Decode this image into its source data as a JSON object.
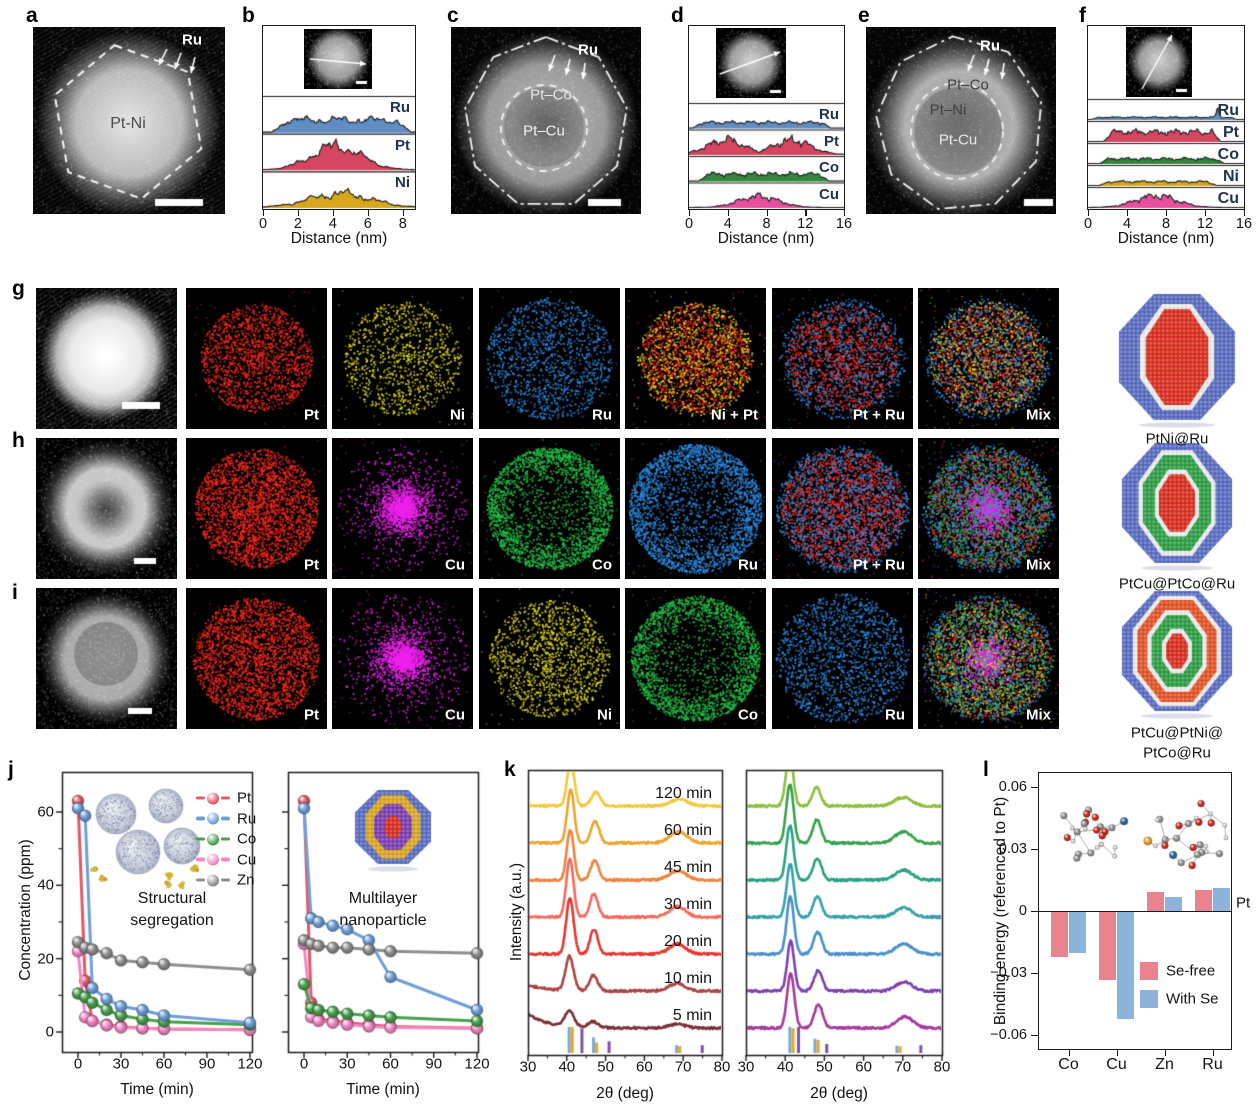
{
  "panels": {
    "a": {
      "letter": "a",
      "core_label": "Pt-Ni",
      "surface_label": "Ru"
    },
    "b": {
      "letter": "b",
      "xlabel": "Distance (nm)",
      "xtick_labels": [
        "0",
        "2",
        "4",
        "6",
        "8"
      ],
      "elements": [
        "Ru",
        "Pt",
        "Ni"
      ]
    },
    "c": {
      "letter": "c",
      "shell_label": "Pt–Co",
      "core_label": "Pt–Cu",
      "surface_label": "Ru"
    },
    "d": {
      "letter": "d",
      "xlabel": "Distance (nm)",
      "xtick_labels": [
        "0",
        "4",
        "8",
        "12",
        "16"
      ],
      "elements": [
        "Ru",
        "Pt",
        "Co",
        "Cu"
      ]
    },
    "e": {
      "letter": "e",
      "shell_label": "Pt–Co",
      "mid_label": "Pt–Ni",
      "core_label": "Pt-Cu",
      "surface_label": "Ru"
    },
    "f": {
      "letter": "f",
      "xlabel": "Distance (nm)",
      "xtick_labels": [
        "0",
        "4",
        "8",
        "12",
        "16"
      ],
      "elements": [
        "Ru",
        "Pt",
        "Co",
        "Ni",
        "Cu"
      ]
    },
    "g": {
      "letter": "g",
      "map_labels": [
        "Pt",
        "Ni",
        "Ru",
        "Ni + Pt",
        "Pt + Ru",
        "Mix"
      ],
      "model_label_lines": [
        "PtNi@Ru"
      ]
    },
    "h": {
      "letter": "h",
      "map_labels": [
        "Pt",
        "Cu",
        "Co",
        "Ru",
        "Pt + Ru",
        "Mix"
      ],
      "model_label_lines": [
        "PtCu@PtCo@Ru"
      ]
    },
    "i": {
      "letter": "i",
      "map_labels": [
        "Pt",
        "Cu",
        "Ni",
        "Co",
        "Ru",
        "Mix"
      ],
      "model_label_lines": [
        "PtCu@PtNi@",
        "PtCo@Ru"
      ]
    },
    "j": {
      "letter": "j",
      "ylabel": "Concentration (ppm)",
      "xlabel": "Time (min)",
      "ytick_labels": [
        "0",
        "20",
        "40",
        "60"
      ],
      "xtick_labels": [
        "0",
        "30",
        "60",
        "90",
        "120"
      ],
      "legend": [
        "Pt",
        "Ru",
        "Co",
        "Cu",
        "Zn"
      ],
      "left_title_lines": [
        "Structural",
        "segregation"
      ],
      "right_title_lines": [
        "Multilayer",
        "nanoparticle"
      ]
    },
    "k": {
      "letter": "k",
      "ylabel": "Intensity (a.u.)",
      "xlabel": "2θ (deg)",
      "xtick_labels": [
        "30",
        "40",
        "50",
        "60",
        "70",
        "80"
      ],
      "trace_labels": [
        "5 min",
        "10 min",
        "20 min",
        "30 min",
        "45 min",
        "60 min",
        "120 min"
      ]
    },
    "l": {
      "letter": "l",
      "ylabel": "Binding energy (referenced to Pt)",
      "ytick_labels": [
        "0.06",
        "0.03",
        "0",
        "−0.03",
        "−0.06"
      ],
      "categories": [
        "Co",
        "Cu",
        "Zn",
        "Ru"
      ],
      "baseline_label": "Pt",
      "legend": [
        {
          "name": "Se-free"
        },
        {
          "name": "With Se"
        }
      ]
    }
  },
  "colors": {
    "profile_label": "#223349",
    "profile": {
      "Ru": "#5f8dc4",
      "Pt": "#d64561",
      "Ni": "#d9a71c",
      "Co": "#35853c",
      "Cu": "#e84f9e"
    },
    "eds": {
      "Pt": "#ff2a1e",
      "Ni": "#e8e21e",
      "Ru": "#2f8fe8",
      "Cu": "#ee22ee",
      "Co": "#26c24b"
    },
    "series": {
      "Pt": "#e15868",
      "Ru": "#6f9fd8",
      "Co": "#47a04b",
      "Cu": "#f287c2",
      "Zn": "#8e8e8e"
    },
    "model": {
      "shell_blue": "#5a6cc0",
      "white": "#ececec",
      "red": "#d93020",
      "green": "#2e9e45",
      "orange": "#e25427",
      "gold": "#d9a723",
      "purple": "#7a3fb0"
    },
    "xrd_left": [
      "#7b2e33",
      "#a84445",
      "#e2372f",
      "#f4695b",
      "#f0823c",
      "#eda32b",
      "#f3c83c"
    ],
    "xrd_right": [
      "#a43a9c",
      "#7d41ae",
      "#4a8fc8",
      "#35a0ac",
      "#2aa182",
      "#35a14c",
      "#8fbe3f"
    ],
    "ref_bar": {
      "blue": "#7ba7d4",
      "gold": "#e3a81f",
      "purple": "#7b52a8"
    },
    "bar": {
      "se_free": "#e8838f",
      "with_se": "#8db3da"
    }
  },
  "chart_data": [
    {
      "id": "b_profiles",
      "type": "area",
      "xlabel": "Distance (nm)",
      "xlim": [
        0,
        8.7
      ],
      "xticks": [
        0,
        2,
        4,
        6,
        8
      ],
      "series": [
        {
          "name": "Ru",
          "shape": {
            "kind": "plateau",
            "start": 0.5,
            "end": 8.45,
            "amp": 0.45
          }
        },
        {
          "name": "Pt",
          "shape": {
            "kind": "dome",
            "center": 4.2,
            "width": 2.0,
            "amp": 0.88
          }
        },
        {
          "name": "Ni",
          "shape": {
            "kind": "dome",
            "center": 4.4,
            "width": 2.5,
            "amp": 0.52
          }
        }
      ]
    },
    {
      "id": "d_profiles",
      "type": "area",
      "xlabel": "Distance (nm)",
      "xlim": [
        0,
        16
      ],
      "xticks": [
        0,
        4,
        8,
        12,
        16
      ],
      "series": [
        {
          "name": "Ru",
          "shape": {
            "kind": "plateau",
            "start": 0.4,
            "end": 14.6,
            "amp": 0.3
          }
        },
        {
          "name": "Pt",
          "shape": {
            "kind": "domes",
            "centers": [
              3.8,
              10.6
            ],
            "width": 2.7,
            "amp": 0.8
          }
        },
        {
          "name": "Co",
          "shape": {
            "kind": "plateau",
            "start": 1.0,
            "end": 14.4,
            "amp": 0.38
          }
        },
        {
          "name": "Cu",
          "shape": {
            "kind": "dome",
            "center": 7.2,
            "width": 2.9,
            "amp": 0.62
          }
        }
      ]
    },
    {
      "id": "f_profiles",
      "type": "area",
      "xlabel": "Distance (nm)",
      "xlim": [
        0,
        16
      ],
      "xticks": [
        0,
        4,
        8,
        12,
        16
      ],
      "series": [
        {
          "name": "Ru",
          "shape": {
            "kind": "plateau_spike",
            "start": 0.3,
            "end": 15.3,
            "amp": 0.15,
            "spike": 13.3,
            "spike_amp": 0.5
          }
        },
        {
          "name": "Pt",
          "shape": {
            "kind": "plateau",
            "start": 1.6,
            "end": 13.6,
            "amp": 0.66
          }
        },
        {
          "name": "Co",
          "shape": {
            "kind": "plateau",
            "start": 1.2,
            "end": 14.0,
            "amp": 0.32
          }
        },
        {
          "name": "Ni",
          "shape": {
            "kind": "plateau",
            "start": 1.2,
            "end": 13.2,
            "amp": 0.26
          }
        },
        {
          "name": "Cu",
          "shape": {
            "kind": "dome",
            "center": 7.0,
            "width": 3.0,
            "amp": 0.82
          }
        }
      ]
    },
    {
      "id": "j_left",
      "type": "line",
      "title": "Structural segregation",
      "xlabel": "Time (min)",
      "ylabel": "Concentration (ppm)",
      "x": [
        0,
        5,
        10,
        20,
        30,
        45,
        60,
        120
      ],
      "xticks": [
        0,
        30,
        60,
        90,
        120
      ],
      "yticks": [
        0,
        20,
        40,
        60
      ],
      "ylim": [
        -5,
        71
      ],
      "legend_position": "top-right",
      "series": [
        {
          "name": "Pt",
          "values": [
            63,
            14,
            3,
            2,
            1.5,
            1,
            0.8,
            0.6
          ]
        },
        {
          "name": "Ru",
          "values": [
            61,
            59,
            12,
            9,
            7,
            6,
            4.5,
            2.5
          ]
        },
        {
          "name": "Co",
          "values": [
            10.5,
            9.5,
            8,
            6,
            4.5,
            3.5,
            2.8,
            2
          ]
        },
        {
          "name": "Cu",
          "values": [
            22,
            4,
            3,
            1.8,
            1.2,
            1,
            0.8,
            0.6
          ]
        },
        {
          "name": "Zn",
          "values": [
            24.5,
            23,
            22.5,
            21.5,
            19.5,
            19,
            18.5,
            17
          ]
        }
      ]
    },
    {
      "id": "j_right",
      "type": "line",
      "title": "Multilayer nanoparticle",
      "xlabel": "Time (min)",
      "ylabel": "Concentration (ppm)",
      "x": [
        0,
        5,
        10,
        20,
        30,
        45,
        60,
        120
      ],
      "xticks": [
        0,
        30,
        60,
        90,
        120
      ],
      "yticks": [
        0,
        20,
        40,
        60
      ],
      "ylim": [
        -5,
        71
      ],
      "series": [
        {
          "name": "Pt",
          "values": [
            63,
            8,
            3.5,
            3,
            2.5,
            2,
            1.5,
            1
          ]
        },
        {
          "name": "Ru",
          "values": [
            61,
            31,
            30,
            29,
            28,
            25,
            15,
            6
          ]
        },
        {
          "name": "Co",
          "values": [
            13,
            6.5,
            6,
            5.5,
            5,
            4.5,
            4,
            3
          ]
        },
        {
          "name": "Cu",
          "values": [
            24,
            4,
            3,
            2.5,
            2,
            1.5,
            1.2,
            1
          ]
        },
        {
          "name": "Zn",
          "values": [
            25,
            24,
            23.5,
            23,
            23,
            22.5,
            22,
            21.5
          ]
        }
      ]
    },
    {
      "id": "k_left",
      "type": "line",
      "subtype": "xrd",
      "xlabel": "2θ (deg)",
      "ylabel": "Intensity (a.u.)",
      "xlim": [
        30,
        80
      ],
      "xticks": [
        30,
        40,
        50,
        60,
        70,
        80
      ],
      "traces": [
        {
          "label": "5 min",
          "peaks": [
            [
              40.7,
              0.25,
              1.7
            ],
            [
              46.8,
              0.1,
              1.8
            ],
            [
              68.4,
              0.06,
              3.0
            ]
          ],
          "ledge": 14
        },
        {
          "label": "10 min",
          "peaks": [
            [
              40.7,
              0.55,
              1.45
            ],
            [
              46.9,
              0.25,
              1.5
            ],
            [
              68.4,
              0.12,
              3.0
            ]
          ],
          "ledge": 6
        },
        {
          "label": "20 min",
          "peaks": [
            [
              40.8,
              0.9,
              1.35
            ],
            [
              47.0,
              0.4,
              1.4
            ],
            [
              68.5,
              0.16,
              3.0
            ]
          ],
          "ledge": 0
        },
        {
          "label": "30 min",
          "peaks": [
            [
              40.8,
              0.95,
              1.3
            ],
            [
              47.0,
              0.38,
              1.4
            ],
            [
              68.5,
              0.17,
              3.0
            ]
          ],
          "ledge": 0
        },
        {
          "label": "45 min",
          "peaks": [
            [
              40.9,
              0.8,
              1.3
            ],
            [
              47.2,
              0.32,
              1.45
            ],
            [
              68.6,
              0.15,
              3.1
            ]
          ],
          "ledge": 0
        },
        {
          "label": "60 min",
          "peaks": [
            [
              41.0,
              0.85,
              1.3
            ],
            [
              47.3,
              0.35,
              1.5
            ],
            [
              68.8,
              0.18,
              3.2
            ]
          ],
          "ledge": 0
        },
        {
          "label": "120 min",
          "peaks": [
            [
              41.0,
              0.72,
              1.3
            ],
            [
              47.5,
              0.22,
              1.6
            ],
            [
              69.0,
              0.11,
              3.2
            ]
          ],
          "ledge": 0
        }
      ],
      "ref_bars": [
        [
          40.6,
          "blue",
          1.0
        ],
        [
          41.4,
          "gold",
          1.0
        ],
        [
          43.9,
          "purple",
          0.95
        ],
        [
          46.9,
          "blue",
          0.6
        ],
        [
          47.7,
          "gold",
          0.4
        ],
        [
          50.9,
          "purple",
          0.45
        ],
        [
          68.3,
          "blue",
          0.3
        ],
        [
          69.1,
          "gold",
          0.27
        ],
        [
          74.9,
          "purple",
          0.3
        ]
      ]
    },
    {
      "id": "k_right",
      "type": "line",
      "subtype": "xrd",
      "xlabel": "2θ (deg)",
      "xlim": [
        30,
        80
      ],
      "xticks": [
        30,
        40,
        50,
        60,
        70,
        80
      ],
      "traces": [
        {
          "label": "",
          "peaks": [
            [
              41.4,
              0.88,
              1.3
            ],
            [
              48.5,
              0.38,
              1.5
            ],
            [
              70.5,
              0.18,
              3.0
            ]
          ],
          "ledge": 0
        },
        {
          "label": "",
          "peaks": [
            [
              41.4,
              0.8,
              1.25
            ],
            [
              48.4,
              0.33,
              1.5
            ],
            [
              70.4,
              0.14,
              3.0
            ]
          ],
          "ledge": 0
        },
        {
          "label": "",
          "peaks": [
            [
              41.3,
              0.92,
              1.3
            ],
            [
              48.3,
              0.35,
              1.5
            ],
            [
              70.3,
              0.16,
              3.0
            ]
          ],
          "ledge": 0
        },
        {
          "label": "",
          "peaks": [
            [
              41.3,
              0.85,
              1.3
            ],
            [
              48.2,
              0.33,
              1.5
            ],
            [
              70.2,
              0.15,
              3.0
            ]
          ],
          "ledge": 0
        },
        {
          "label": "",
          "peaks": [
            [
              41.2,
              0.88,
              1.3
            ],
            [
              48.2,
              0.35,
              1.5
            ],
            [
              70.2,
              0.16,
              3.0
            ]
          ],
          "ledge": 0
        },
        {
          "label": "",
          "peaks": [
            [
              41.2,
              0.95,
              1.3
            ],
            [
              48.1,
              0.38,
              1.5
            ],
            [
              70.1,
              0.18,
              3.0
            ]
          ],
          "ledge": 0
        },
        {
          "label": "",
          "peaks": [
            [
              41.1,
              0.85,
              1.3
            ],
            [
              48.0,
              0.3,
              1.5
            ],
            [
              70.0,
              0.14,
              3.0
            ]
          ],
          "ledge": 0
        }
      ],
      "ref_bars": [
        [
          41.2,
          "blue",
          1.0
        ],
        [
          42.0,
          "gold",
          0.95
        ],
        [
          43.4,
          "purple",
          1.0
        ],
        [
          47.6,
          "blue",
          0.55
        ],
        [
          48.4,
          "gold",
          0.5
        ],
        [
          50.6,
          "purple",
          0.35
        ],
        [
          68.5,
          "blue",
          0.28
        ],
        [
          69.3,
          "gold",
          0.26
        ],
        [
          74.6,
          "purple",
          0.3
        ]
      ]
    },
    {
      "id": "l_bars",
      "type": "bar",
      "ylabel": "Binding energy (referenced to Pt)",
      "categories": [
        "Co",
        "Cu",
        "Zn",
        "Ru"
      ],
      "yticks": [
        0.06,
        0.03,
        0,
        -0.03,
        -0.06
      ],
      "ylim": [
        -0.068,
        0.068
      ],
      "baseline_label": "Pt",
      "series": [
        {
          "name": "Se-free",
          "values": [
            -0.022,
            -0.033,
            0.009,
            0.01
          ]
        },
        {
          "name": "With Se",
          "values": [
            -0.02,
            -0.052,
            0.007,
            0.011
          ]
        }
      ]
    }
  ]
}
